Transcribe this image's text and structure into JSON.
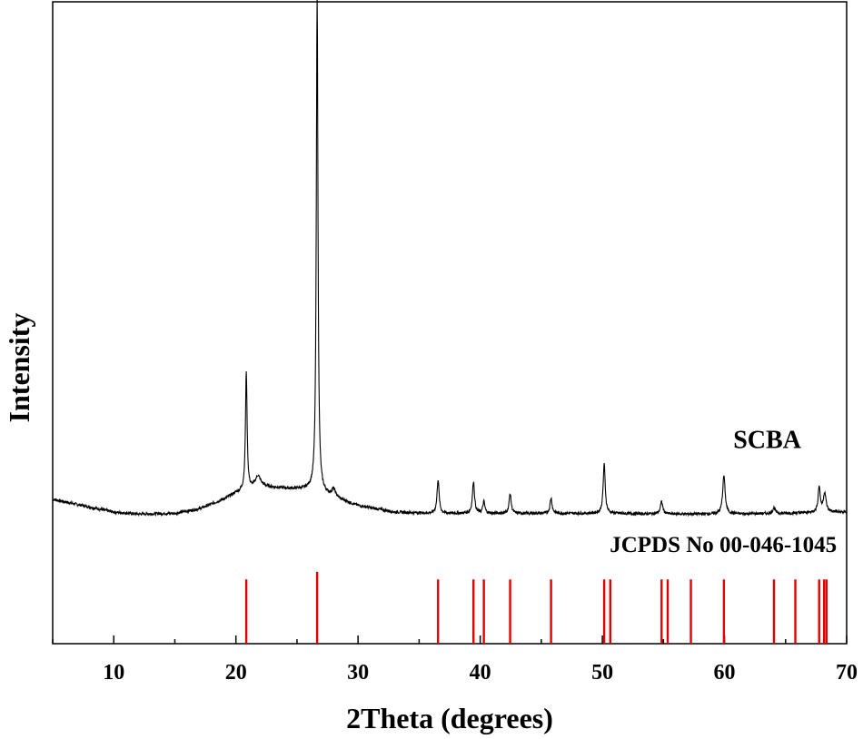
{
  "chart_data": {
    "type": "line",
    "title": "",
    "xlabel": "2Theta (degrees)",
    "ylabel": "Intensity",
    "xlim": [
      5,
      70
    ],
    "ylim": [
      0,
      100
    ],
    "x_ticks": [
      10,
      20,
      30,
      40,
      50,
      60,
      70
    ],
    "x_minor_step": 5,
    "y_tick_labels": false,
    "grid": false,
    "colors": {
      "sample": "#000000",
      "reference": "#e00000"
    },
    "series": [
      {
        "name": "SCBA",
        "baseline": [
          [
            5,
            22.5
          ],
          [
            8,
            21.3
          ],
          [
            10,
            20.5
          ],
          [
            12,
            20.2
          ],
          [
            15,
            20.3
          ],
          [
            17,
            21.0
          ],
          [
            19,
            22.5
          ],
          [
            20,
            23.5
          ],
          [
            22,
            24.5
          ],
          [
            24,
            24.2
          ],
          [
            26,
            24.0
          ],
          [
            28,
            22.8
          ],
          [
            30,
            21.5
          ],
          [
            33,
            20.5
          ],
          [
            36,
            20.3
          ],
          [
            40,
            20.3
          ],
          [
            45,
            20.3
          ],
          [
            50,
            20.3
          ],
          [
            55,
            20.2
          ],
          [
            60,
            20.2
          ],
          [
            65,
            20.3
          ],
          [
            68,
            20.5
          ],
          [
            70,
            20.5
          ]
        ],
        "peaks": [
          {
            "x": 20.85,
            "height": 18.5,
            "width": 0.08
          },
          {
            "x": 21.8,
            "height": 1.7,
            "width": 0.25
          },
          {
            "x": 26.65,
            "height": 77.5,
            "width": 0.08
          },
          {
            "x": 28.0,
            "height": 1.2,
            "width": 0.18
          },
          {
            "x": 36.55,
            "height": 5.3,
            "width": 0.1
          },
          {
            "x": 39.45,
            "height": 5.0,
            "width": 0.1
          },
          {
            "x": 40.3,
            "height": 1.8,
            "width": 0.1
          },
          {
            "x": 42.45,
            "height": 3.1,
            "width": 0.1
          },
          {
            "x": 45.8,
            "height": 2.4,
            "width": 0.1
          },
          {
            "x": 50.15,
            "height": 7.7,
            "width": 0.1
          },
          {
            "x": 54.85,
            "height": 1.9,
            "width": 0.12
          },
          {
            "x": 59.95,
            "height": 6.0,
            "width": 0.12
          },
          {
            "x": 64.05,
            "height": 0.9,
            "width": 0.12
          },
          {
            "x": 67.75,
            "height": 4.0,
            "width": 0.1
          },
          {
            "x": 68.2,
            "height": 3.0,
            "width": 0.13
          }
        ]
      },
      {
        "name": "JCPDS No 00-046-1045",
        "type": "stick",
        "sticks": [
          {
            "x": 20.85,
            "y": 10.0
          },
          {
            "x": 26.65,
            "y": 11.2
          },
          {
            "x": 36.55,
            "y": 10.0
          },
          {
            "x": 39.45,
            "y": 10.0
          },
          {
            "x": 40.3,
            "y": 10.0
          },
          {
            "x": 42.45,
            "y": 10.0
          },
          {
            "x": 45.8,
            "y": 10.0
          },
          {
            "x": 50.15,
            "y": 10.0
          },
          {
            "x": 50.65,
            "y": 10.0
          },
          {
            "x": 54.85,
            "y": 10.0
          },
          {
            "x": 55.35,
            "y": 10.0
          },
          {
            "x": 57.25,
            "y": 10.0
          },
          {
            "x": 59.95,
            "y": 10.0
          },
          {
            "x": 64.05,
            "y": 10.0
          },
          {
            "x": 65.8,
            "y": 10.0
          },
          {
            "x": 67.75,
            "y": 10.0
          },
          {
            "x": 68.15,
            "y": 10.0
          },
          {
            "x": 68.35,
            "y": 10.0
          }
        ]
      }
    ],
    "annotations": [
      {
        "text": "SCBA",
        "x": 63.5,
        "y": 30.5
      },
      {
        "text": "JCPDS No 00-046-1045",
        "x": 59.9,
        "y": 14.3
      }
    ]
  }
}
